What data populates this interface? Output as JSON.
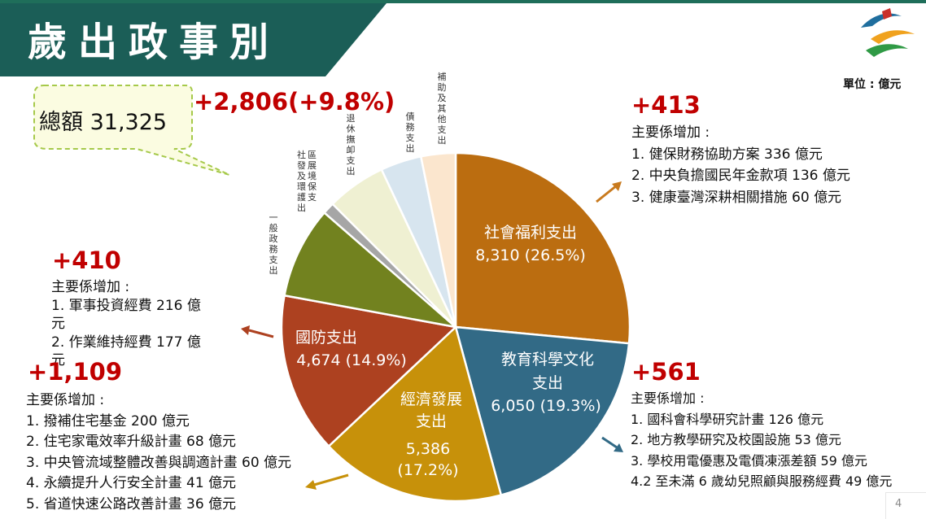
{
  "title": "歲出政事別",
  "unit": "單位 : 億元",
  "total": {
    "label": "總額",
    "value": "31,325",
    "change": "+2,806(+9.8%)"
  },
  "colors": {
    "brand": "#1b5e57",
    "accent_red": "#c00000",
    "arrow": "#c87a1e"
  },
  "chart_data": {
    "type": "pie",
    "unit": "億元",
    "slices": [
      {
        "name": "社會福利支出",
        "value": 8310,
        "percent": 26.5,
        "label": "8,310 (26.5%)",
        "color": "#bb6d10"
      },
      {
        "name": "教育科學文化支出",
        "value": 6050,
        "percent": 19.3,
        "label": "6,050 (19.3%)",
        "color": "#326a86"
      },
      {
        "name": "經濟發展支出",
        "value": 5386,
        "percent": 17.2,
        "label": "5,386 (17.2%)",
        "color": "#c7910a"
      },
      {
        "name": "國防支出",
        "value": 4674,
        "percent": 14.9,
        "label": "4,674 (14.9%)",
        "color": "#ad4120"
      },
      {
        "name": "一般政務支出",
        "percent": 8.5,
        "color": "#72821f"
      },
      {
        "name": "社區發展及環境保護支出",
        "percent": 1.1,
        "color": "#a6a6a6"
      },
      {
        "name": "退休撫卹支出",
        "percent": 5.5,
        "color": "#eff0d2"
      },
      {
        "name": "債務支出",
        "percent": 3.8,
        "color": "#d7e5ef"
      },
      {
        "name": "補助及其他支出",
        "percent": 3.2,
        "color": "#fbe6ce"
      }
    ]
  },
  "labels": {
    "social_name": "社會福利支出",
    "edu_name_1": "教育科學文化",
    "edu_name_2": "支出",
    "econ_name_1": "經濟發展",
    "econ_name_2": "支出",
    "econ_value": "5,386",
    "econ_pct": "(17.2%)",
    "defense_name": "國防支出",
    "general": "一般政務支出",
    "community_1": "區展境保支",
    "community_2": "社發及環護出",
    "pension": "退休撫卹支出",
    "debt": "債務支出",
    "subsidy": "補助及其他支出"
  },
  "blocks": {
    "social": {
      "change": "+413",
      "heading": "主要係增加 :",
      "items": [
        "1. 健保財務協助方案 336 億元",
        "2. 中央負擔國民年金款項 136 億元",
        "3. 健康臺灣深耕相關措施 60 億元"
      ]
    },
    "defense": {
      "change": "+410",
      "heading": "主要係增加 :",
      "items": [
        "1. 軍事投資經費 216 億",
        "元",
        "2. 作業維持經費 177 億",
        "元"
      ]
    },
    "economic": {
      "change": "+1,109",
      "heading": "主要係增加 :",
      "items": [
        "1. 撥補住宅基金 200 億元",
        "2. 住宅家電效率升級計畫 68 億元",
        "3. 中央管流域整體改善與調適計畫 60 億元",
        "4. 永續提升人行安全計畫 41 億元",
        "5. 省道快速公路改善計畫 36 億元"
      ]
    },
    "education": {
      "change": "+561",
      "heading": "主要係增加 :",
      "items": [
        "1. 國科會科學研究計畫 126 億元",
        "2. 地方教學研究及校園設施 53 億元",
        "3. 學校用電優惠及電價凍漲差額 59 億元",
        "4.2 至未滿 6 歲幼兒照顧與服務經費 49 億元"
      ]
    }
  },
  "page_number": "4"
}
